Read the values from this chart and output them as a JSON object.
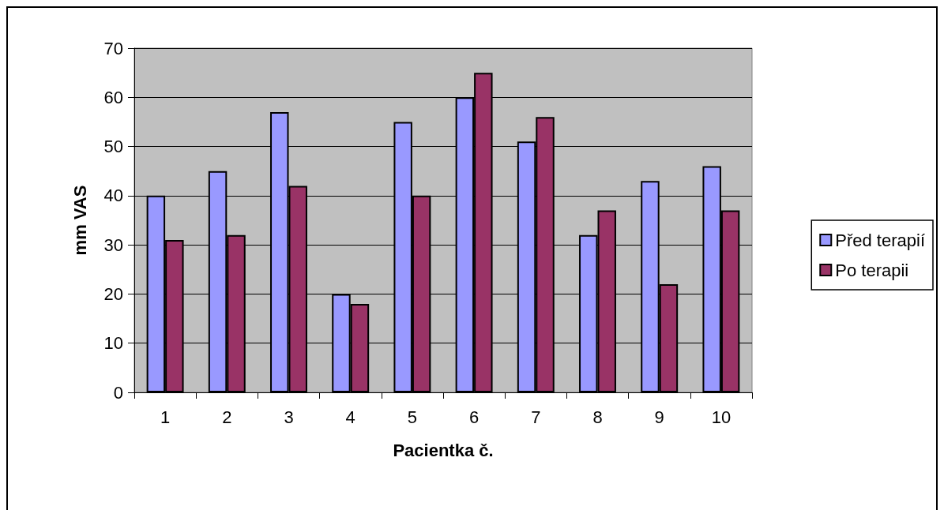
{
  "chart_data": {
    "type": "bar",
    "xlabel": "Pacientka č.",
    "ylabel": "mm VAS",
    "categories": [
      "1",
      "2",
      "3",
      "4",
      "5",
      "6",
      "7",
      "8",
      "9",
      "10"
    ],
    "series": [
      {
        "name": "Před terapií",
        "color": "#9999ff",
        "values": [
          40,
          45,
          57,
          20,
          55,
          60,
          51,
          32,
          43,
          46
        ]
      },
      {
        "name": "Po terapii",
        "color": "#993366",
        "values": [
          31,
          32,
          42,
          18,
          40,
          65,
          56,
          37,
          22,
          37
        ]
      }
    ],
    "ylim": [
      0,
      70
    ],
    "yticks": [
      0,
      10,
      20,
      30,
      40,
      50,
      60,
      70
    ],
    "grid": "y",
    "legend": "right"
  }
}
